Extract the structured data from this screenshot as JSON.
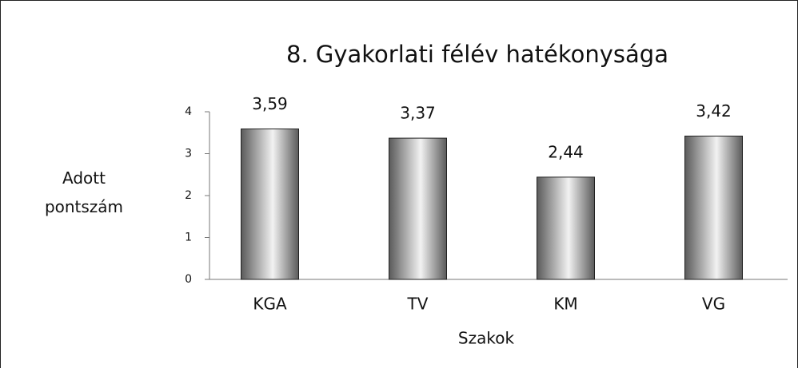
{
  "chart_data": {
    "type": "bar",
    "title": "8. Gyakorlati félév hatékonysága",
    "x_label": "Szakok",
    "y_label": "Adott pontszám",
    "categories": [
      "KGA",
      "TV",
      "KM",
      "VG"
    ],
    "values": [
      3.59,
      3.37,
      2.44,
      3.42
    ],
    "value_labels": [
      "3,59",
      "3,37",
      "2,44",
      "3,42"
    ],
    "ylim": [
      0,
      4
    ],
    "yticks": [
      0,
      1,
      2,
      3,
      4
    ],
    "grid": false
  }
}
